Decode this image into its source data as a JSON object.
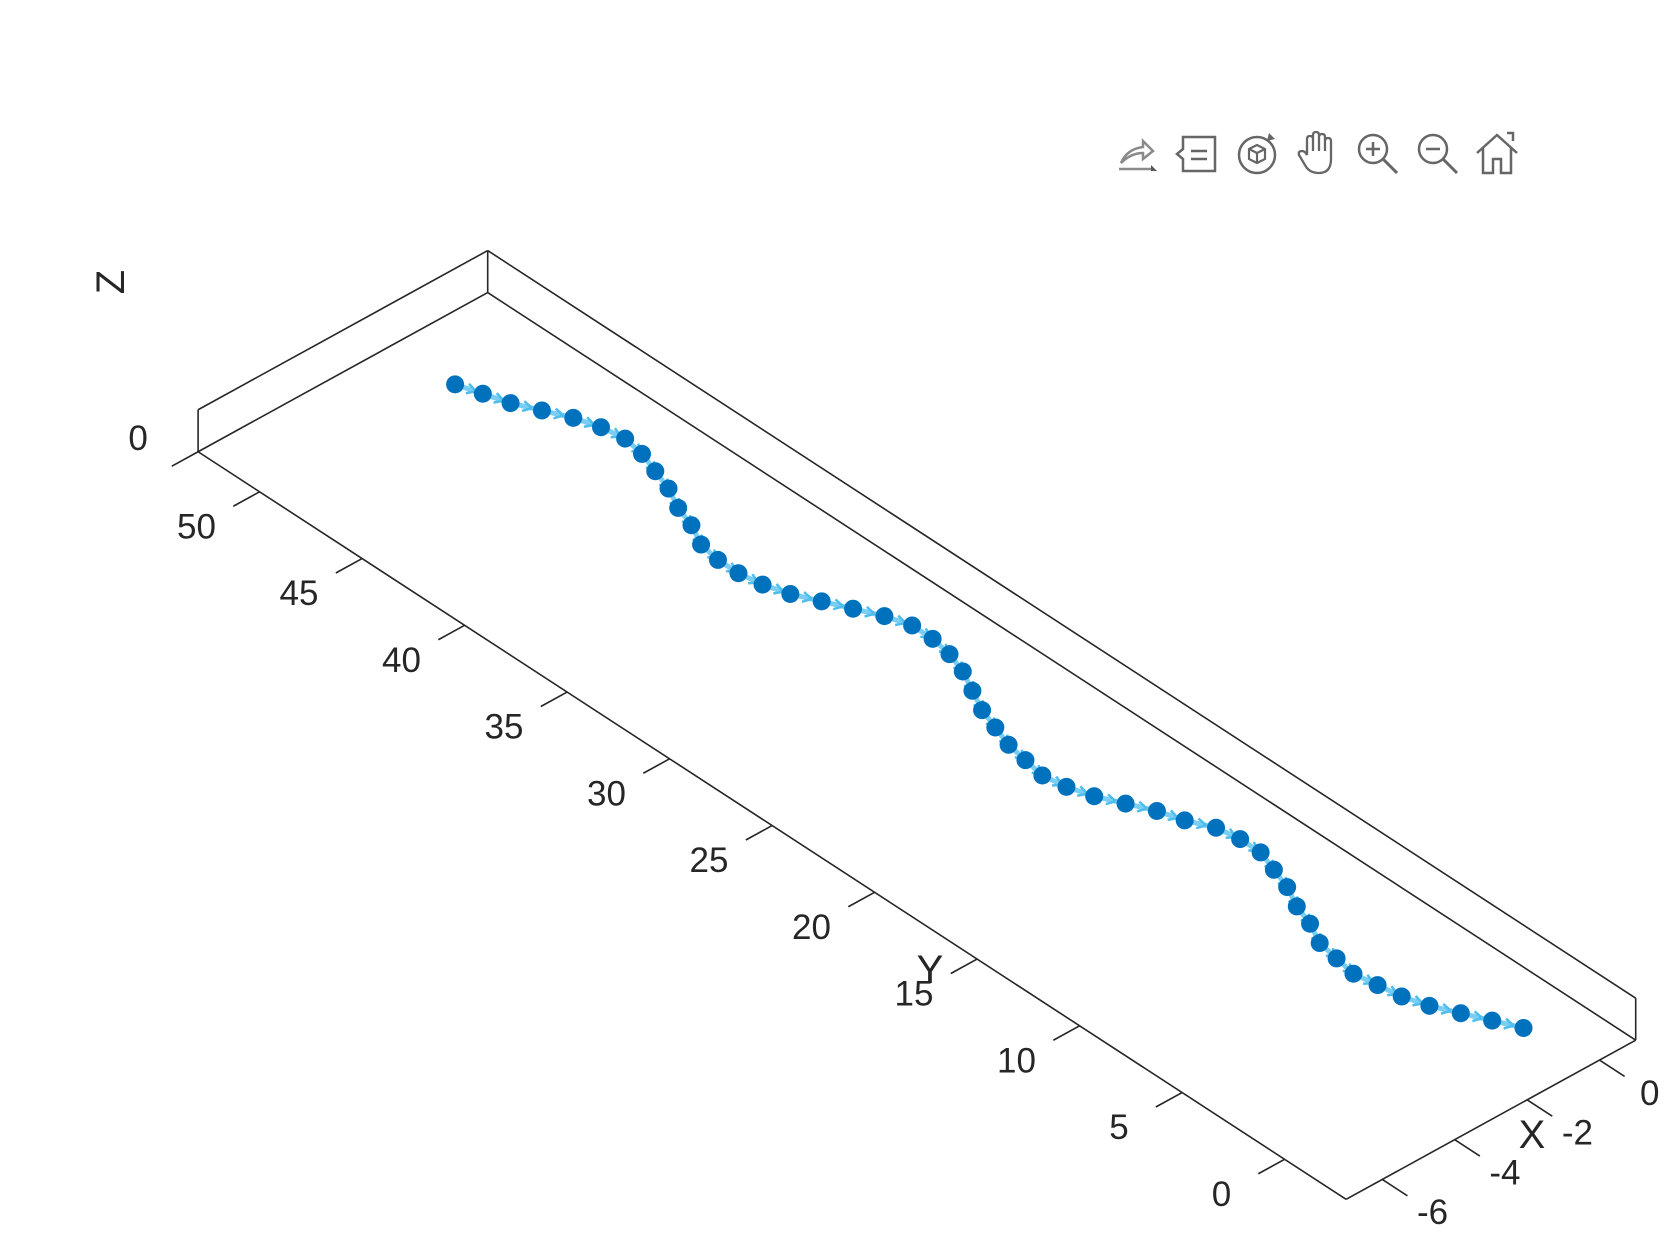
{
  "toolbar": {
    "buttons": [
      {
        "name": "export-icon"
      },
      {
        "name": "data-tips-icon"
      },
      {
        "name": "rotate-3d-icon"
      },
      {
        "name": "pan-icon"
      },
      {
        "name": "zoom-in-icon"
      },
      {
        "name": "zoom-out-icon"
      },
      {
        "name": "home-icon"
      }
    ]
  },
  "chart_data": {
    "type": "scatter",
    "title": "",
    "xlabel": "X",
    "ylabel": "Y",
    "zlabel": "Z",
    "xlim": [
      -7,
      1
    ],
    "ylim": [
      -3,
      53
    ],
    "zlim": [
      0,
      0.1
    ],
    "xticks": [
      "-6",
      "-4",
      "-2",
      "0"
    ],
    "yticks": [
      "0",
      "5",
      "10",
      "15",
      "20",
      "25",
      "30",
      "35",
      "40",
      "45",
      "50"
    ],
    "zticks": [
      "0"
    ],
    "grid": false,
    "marker_color": "#0072BD",
    "line_color": "#4DBEEE",
    "series": [
      {
        "x": [
          -0.4,
          -0.7,
          -1.0,
          -1.3,
          -1.5,
          -1.6,
          -1.7,
          -1.6,
          -1.5,
          -1.2,
          -1.0,
          -0.7,
          -0.5,
          -0.3,
          -0.3,
          -0.4,
          -0.7,
          -0.9,
          -1.2,
          -1.5,
          -1.7,
          -1.8,
          -1.7,
          -1.6,
          -1.4,
          -1.2,
          -0.9,
          -0.6,
          -0.4,
          -0.3,
          -0.3,
          -0.5,
          -0.8,
          -1.1,
          -1.4,
          -1.6,
          -1.7,
          -1.7,
          -1.6,
          -1.3,
          -1.1,
          -0.8,
          -0.6,
          -0.4,
          -0.3,
          -0.4,
          -0.6,
          -0.9,
          -1.2,
          -1.4,
          -1.6
        ],
        "y": [
          0,
          1,
          2,
          3,
          4,
          5,
          6,
          7,
          8,
          9,
          10,
          11,
          12,
          13,
          14,
          15,
          16,
          17,
          18,
          19,
          20,
          21,
          22,
          23,
          24,
          25,
          26,
          27,
          28,
          29,
          30,
          31,
          32,
          33,
          34,
          35,
          36,
          37,
          38,
          39,
          40,
          41,
          42,
          43,
          44,
          45,
          46,
          47,
          48,
          49,
          50
        ],
        "z": [
          0,
          0,
          0,
          0,
          0,
          0,
          0,
          0,
          0,
          0,
          0,
          0,
          0,
          0,
          0,
          0,
          0,
          0,
          0,
          0,
          0,
          0,
          0,
          0,
          0,
          0,
          0,
          0,
          0,
          0,
          0,
          0,
          0,
          0,
          0,
          0,
          0,
          0,
          0,
          0,
          0,
          0,
          0,
          0,
          0,
          0,
          0,
          0,
          0,
          0,
          0
        ]
      }
    ]
  }
}
